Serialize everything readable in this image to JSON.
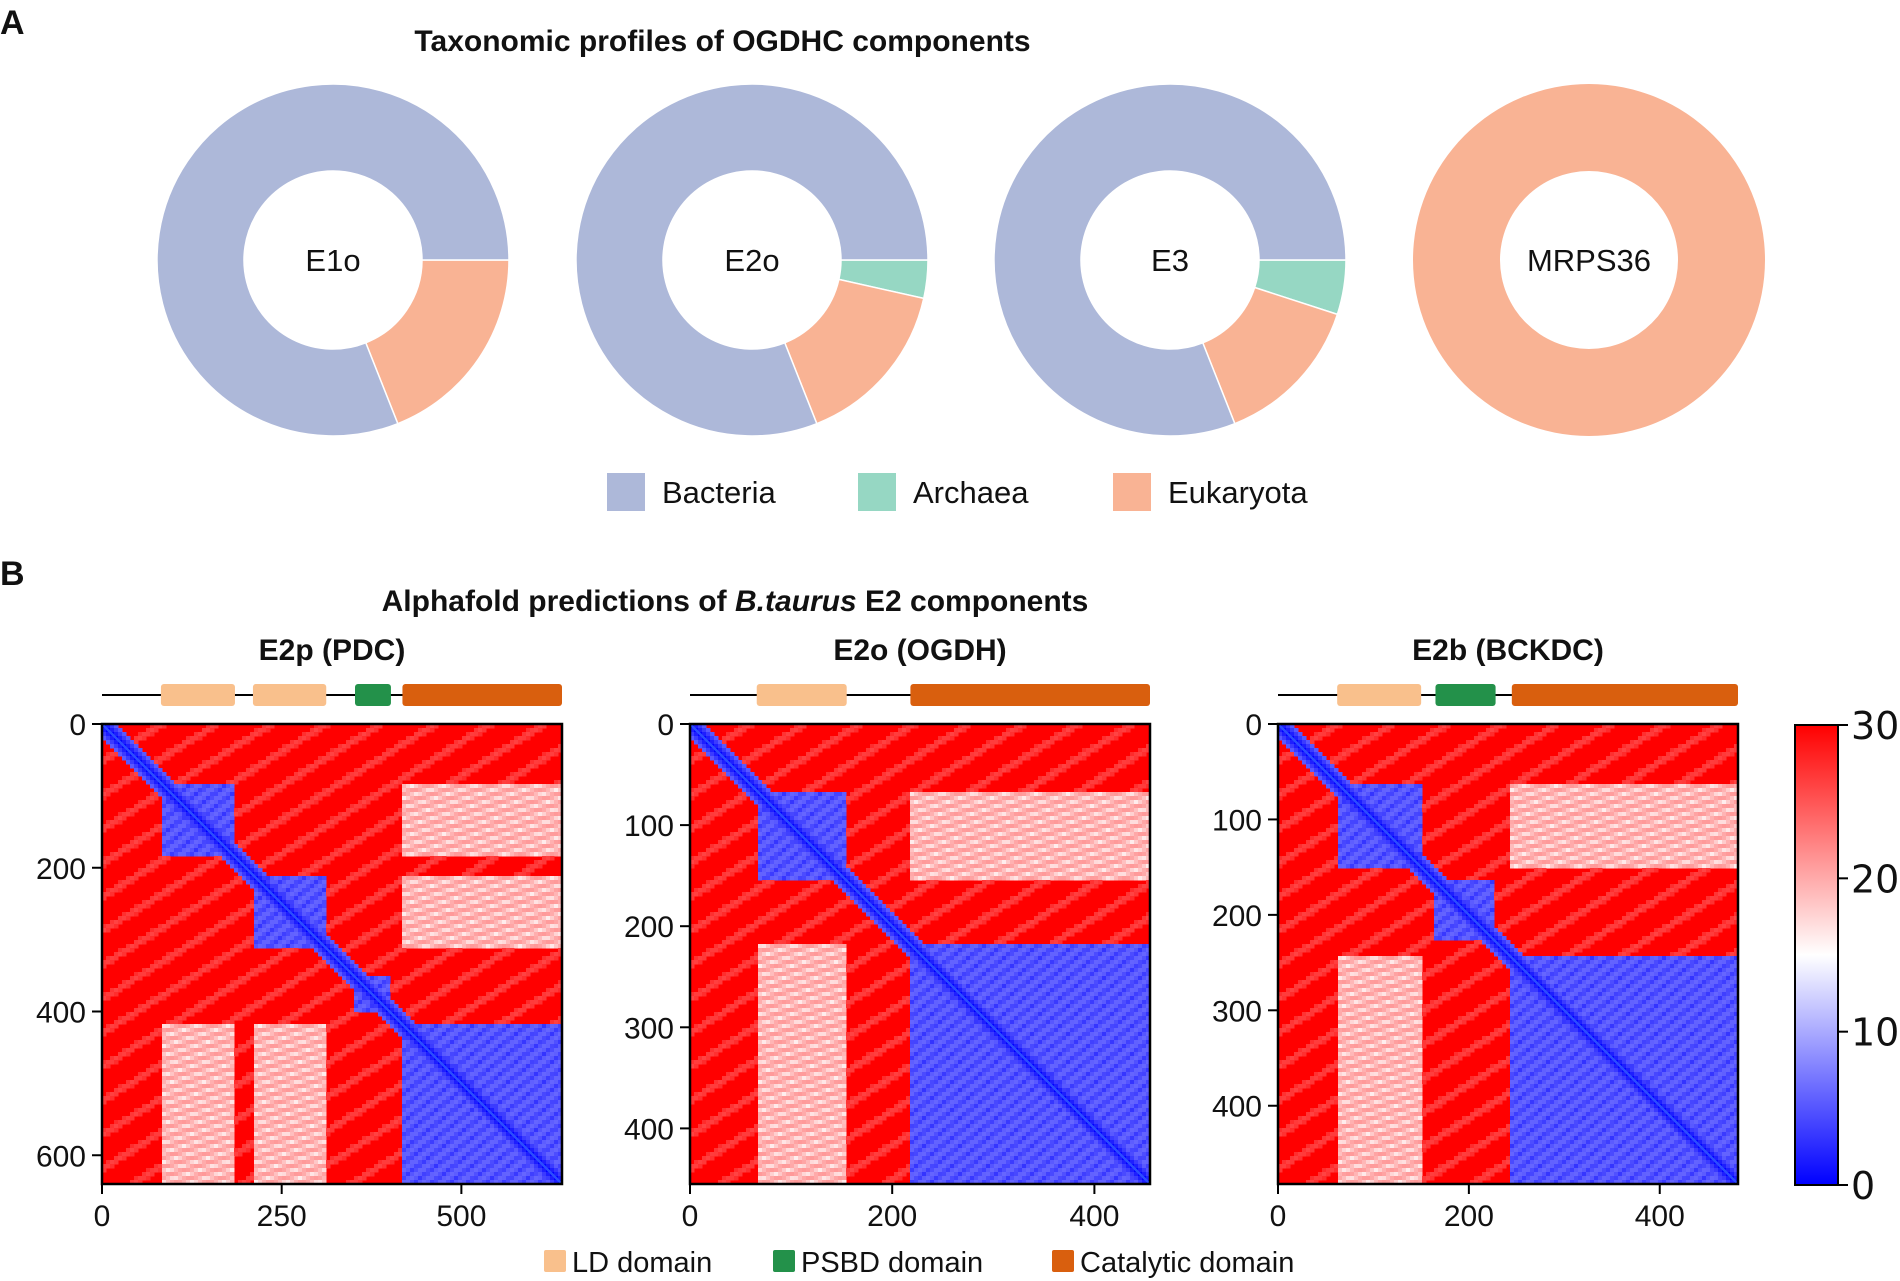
{
  "panel_a": {
    "letter": "A",
    "title": "Taxonomic profiles of OGDHC components",
    "legend": [
      {
        "label": "Bacteria",
        "color": "#adb8d9"
      },
      {
        "label": "Archaea",
        "color": "#96d7c3"
      },
      {
        "label": "Eukaryota",
        "color": "#f9b394"
      }
    ]
  },
  "panel_b": {
    "letter": "B",
    "title_before": "Alphafold predictions of ",
    "title_italic": "B.taurus",
    "title_after": " E2 components",
    "domain_legend": [
      {
        "label": "LD domain",
        "color": "#f9c08c"
      },
      {
        "label": "PSBD domain",
        "color": "#23914a"
      },
      {
        "label": "Catalytic domain",
        "color": "#d95f0e"
      }
    ],
    "colorbar": {
      "ticks": [
        "0",
        "10",
        "20",
        "30"
      ],
      "min": 0,
      "max": 30,
      "colors": [
        "#0000ff",
        "#ffffff",
        "#ff0000"
      ]
    }
  },
  "chart_data": [
    {
      "type": "pie",
      "variant": "donut",
      "center_label": "E1o",
      "categories": [
        "Bacteria",
        "Archaea",
        "Eukaryota"
      ],
      "values": [
        81,
        0,
        19
      ],
      "colors": [
        "#adb8d9",
        "#96d7c3",
        "#f9b394"
      ]
    },
    {
      "type": "pie",
      "variant": "donut",
      "center_label": "E2o",
      "categories": [
        "Bacteria",
        "Archaea",
        "Eukaryota"
      ],
      "values": [
        81,
        3.5,
        15.5
      ],
      "colors": [
        "#adb8d9",
        "#96d7c3",
        "#f9b394"
      ]
    },
    {
      "type": "pie",
      "variant": "donut",
      "center_label": "E3",
      "categories": [
        "Bacteria",
        "Archaea",
        "Eukaryota"
      ],
      "values": [
        81,
        5,
        14
      ],
      "colors": [
        "#adb8d9",
        "#96d7c3",
        "#f9b394"
      ]
    },
    {
      "type": "pie",
      "variant": "donut",
      "center_label": "MRPS36",
      "categories": [
        "Bacteria",
        "Archaea",
        "Eukaryota"
      ],
      "values": [
        0,
        0,
        100
      ],
      "colors": [
        "#adb8d9",
        "#96d7c3",
        "#f9b394"
      ]
    },
    {
      "type": "heatmap",
      "title": "E2p (PDC)",
      "length": 640,
      "xticks": [
        0,
        250,
        500
      ],
      "yticks": [
        0,
        200,
        400,
        600
      ],
      "domains": [
        {
          "type": "LD",
          "start": 82,
          "end": 185
        },
        {
          "type": "LD",
          "start": 210,
          "end": 312
        },
        {
          "type": "PSBD",
          "start": 352,
          "end": 402
        },
        {
          "type": "Catalytic",
          "start": 418,
          "end": 640
        }
      ]
    },
    {
      "type": "heatmap",
      "title": "E2o (OGDH)",
      "length": 455,
      "xticks": [
        0,
        200,
        400
      ],
      "yticks": [
        0,
        100,
        200,
        300,
        400
      ],
      "domains": [
        {
          "type": "LD",
          "start": 66,
          "end": 155
        },
        {
          "type": "Catalytic",
          "start": 218,
          "end": 455
        }
      ]
    },
    {
      "type": "heatmap",
      "title": "E2b (BCKDC)",
      "length": 482,
      "xticks": [
        0,
        200,
        400
      ],
      "yticks": [
        0,
        100,
        200,
        300,
        400
      ],
      "domains": [
        {
          "type": "LD",
          "start": 62,
          "end": 150
        },
        {
          "type": "PSBD",
          "start": 165,
          "end": 228
        },
        {
          "type": "Catalytic",
          "start": 245,
          "end": 482
        }
      ]
    }
  ]
}
